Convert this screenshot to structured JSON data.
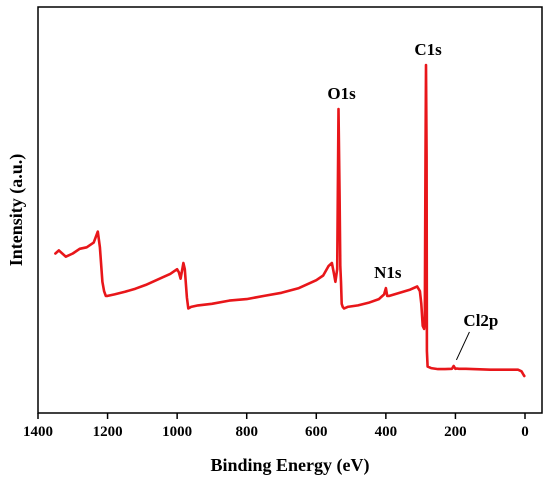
{
  "chart_data": {
    "type": "line",
    "xlabel": "Binding Energy (eV)",
    "ylabel": "Intensity (a.u.)",
    "xlim": [
      1400,
      -40
    ],
    "x_reversed": true,
    "ylim": [
      0,
      100
    ],
    "y_ticks_shown": false,
    "x_ticks": [
      1400,
      1200,
      1000,
      800,
      600,
      400,
      200,
      0
    ],
    "x_tick_labels": [
      "1400",
      "1200",
      "1000",
      "800",
      "600",
      "400",
      "200",
      "0"
    ],
    "series_color": "#e8161a",
    "series": [
      {
        "x": [
          1350,
          1340,
          1320,
          1300,
          1280,
          1260,
          1240,
          1228,
          1222,
          1215,
          1210,
          1205,
          1200,
          1180,
          1150,
          1120,
          1090,
          1060,
          1040,
          1020,
          1000,
          995,
          990,
          982,
          978,
          972,
          968,
          960,
          940,
          900,
          850,
          800,
          750,
          700,
          650,
          600,
          580,
          565,
          555,
          550,
          545,
          540,
          536,
          533,
          531,
          529,
          527,
          524,
          520,
          510,
          480,
          450,
          420,
          405,
          400,
          396,
          390,
          360,
          330,
          310,
          302,
          298,
          294,
          290,
          288,
          286,
          284.5,
          283,
          282,
          280,
          270,
          250,
          230,
          210,
          205,
          200,
          196,
          190,
          170,
          150,
          120,
          100,
          80,
          60,
          40,
          20,
          10,
          5,
          2
        ],
        "y": [
          39,
          40,
          38,
          39,
          40.5,
          41,
          42.5,
          46,
          41,
          30,
          27,
          25.5,
          25.5,
          26,
          26.8,
          27.8,
          29,
          30.5,
          31.5,
          32.5,
          34,
          33,
          31,
          36,
          34,
          25,
          21.5,
          22,
          22.5,
          23,
          24,
          24.5,
          25.5,
          26.5,
          28,
          30.5,
          32,
          35,
          36,
          33,
          30,
          34,
          85,
          57,
          35,
          30,
          23,
          22,
          21.5,
          22,
          22.5,
          23.3,
          24.5,
          26,
          28,
          25.5,
          25.5,
          26.5,
          27.5,
          28.5,
          27,
          23,
          16,
          15,
          18,
          70,
          99,
          70,
          8,
          3,
          2.5,
          2.2,
          2.2,
          2.3,
          3.2,
          2.3,
          2.4,
          2.3,
          2.3,
          2.2,
          2.1,
          2.0,
          2.0,
          2.0,
          2.0,
          2.0,
          1.5,
          0.5,
          0
        ]
      }
    ],
    "annotations": [
      {
        "text": "C1s",
        "x": 284.5,
        "y": 99
      },
      {
        "text": "O1s",
        "x": 533,
        "y": 85
      },
      {
        "text": "N1s",
        "x": 400,
        "y": 28
      },
      {
        "text": "Cl2p",
        "x": 200,
        "y": 3.2
      }
    ]
  }
}
